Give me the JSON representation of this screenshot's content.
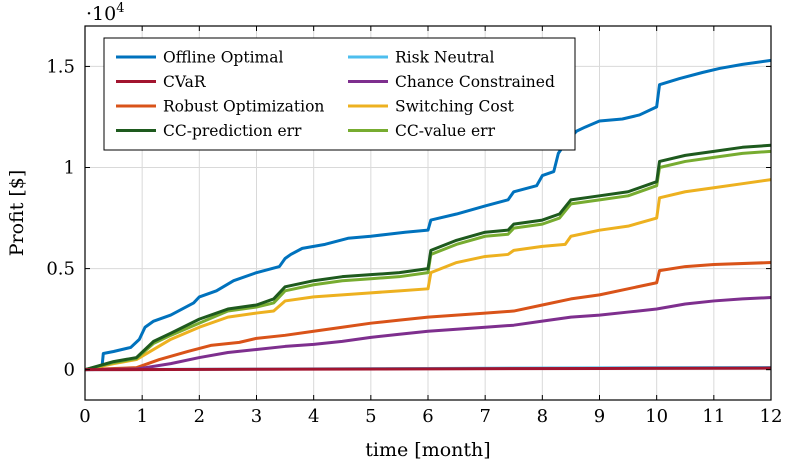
{
  "chart_data": {
    "type": "line",
    "xlabel": "time [month]",
    "ylabel": "Profit [$]",
    "y_multiplier": "·10",
    "y_multiplier_exponent": "4",
    "xlim": [
      0,
      12
    ],
    "ylim": [
      -0.15,
      1.7
    ],
    "x_ticks": [
      0,
      1,
      2,
      3,
      4,
      5,
      6,
      7,
      8,
      9,
      10,
      11,
      12
    ],
    "x_tick_labels": [
      "0",
      "1",
      "2",
      "3",
      "4",
      "5",
      "6",
      "7",
      "8",
      "9",
      "10",
      "11",
      "12"
    ],
    "y_ticks": [
      0,
      0.5,
      1,
      1.5
    ],
    "y_tick_labels": [
      "0",
      "0.5",
      "1",
      "1.5"
    ],
    "grid": true,
    "legend_position": "top-left",
    "series": [
      {
        "name": "Offline Optimal",
        "color": "#0072bd",
        "points": [
          [
            0,
            0
          ],
          [
            0.3,
            0.02
          ],
          [
            0.32,
            0.08
          ],
          [
            0.5,
            0.09
          ],
          [
            0.8,
            0.11
          ],
          [
            0.95,
            0.15
          ],
          [
            1.05,
            0.21
          ],
          [
            1.2,
            0.24
          ],
          [
            1.5,
            0.27
          ],
          [
            1.9,
            0.33
          ],
          [
            2.0,
            0.36
          ],
          [
            2.3,
            0.39
          ],
          [
            2.6,
            0.44
          ],
          [
            3.0,
            0.48
          ],
          [
            3.4,
            0.51
          ],
          [
            3.5,
            0.55
          ],
          [
            3.6,
            0.57
          ],
          [
            3.8,
            0.6
          ],
          [
            4.2,
            0.62
          ],
          [
            4.6,
            0.65
          ],
          [
            5.0,
            0.66
          ],
          [
            5.3,
            0.67
          ],
          [
            5.6,
            0.68
          ],
          [
            6.0,
            0.69
          ],
          [
            6.05,
            0.74
          ],
          [
            6.5,
            0.77
          ],
          [
            7.0,
            0.81
          ],
          [
            7.4,
            0.84
          ],
          [
            7.5,
            0.88
          ],
          [
            7.9,
            0.91
          ],
          [
            8.0,
            0.96
          ],
          [
            8.2,
            0.98
          ],
          [
            8.28,
            1.07
          ],
          [
            8.4,
            1.12
          ],
          [
            8.6,
            1.18
          ],
          [
            8.75,
            1.2
          ],
          [
            9.0,
            1.23
          ],
          [
            9.4,
            1.24
          ],
          [
            9.7,
            1.26
          ],
          [
            10.0,
            1.3
          ],
          [
            10.05,
            1.41
          ],
          [
            10.4,
            1.44
          ],
          [
            10.8,
            1.47
          ],
          [
            11.1,
            1.49
          ],
          [
            11.5,
            1.51
          ],
          [
            12,
            1.53
          ]
        ]
      },
      {
        "name": "Risk Neutral",
        "color": "#4dbeee",
        "points": [
          [
            0,
            0
          ],
          [
            3,
            0.003
          ],
          [
            6,
            0.006
          ],
          [
            9,
            0.009
          ],
          [
            12,
            0.011
          ]
        ]
      },
      {
        "name": "CVaR",
        "color": "#a2142f",
        "points": [
          [
            0,
            0
          ],
          [
            3,
            0.002
          ],
          [
            6,
            0.004
          ],
          [
            9,
            0.006
          ],
          [
            12,
            0.008
          ]
        ]
      },
      {
        "name": "Chance Constrained",
        "color": "#7e2f8e",
        "points": [
          [
            0,
            0
          ],
          [
            0.9,
            0.003
          ],
          [
            1.5,
            0.03
          ],
          [
            2.0,
            0.06
          ],
          [
            2.5,
            0.085
          ],
          [
            3.0,
            0.1
          ],
          [
            3.5,
            0.115
          ],
          [
            4.0,
            0.125
          ],
          [
            4.5,
            0.14
          ],
          [
            5.0,
            0.16
          ],
          [
            5.5,
            0.175
          ],
          [
            6.0,
            0.19
          ],
          [
            6.5,
            0.2
          ],
          [
            7.0,
            0.21
          ],
          [
            7.5,
            0.22
          ],
          [
            8.0,
            0.24
          ],
          [
            8.5,
            0.26
          ],
          [
            9.0,
            0.27
          ],
          [
            9.5,
            0.285
          ],
          [
            10.0,
            0.3
          ],
          [
            10.5,
            0.325
          ],
          [
            11.0,
            0.34
          ],
          [
            11.5,
            0.35
          ],
          [
            12,
            0.357
          ]
        ]
      },
      {
        "name": "Robust Optimization",
        "color": "#d95319",
        "points": [
          [
            0,
            0
          ],
          [
            0.9,
            0.01
          ],
          [
            1.3,
            0.05
          ],
          [
            1.8,
            0.09
          ],
          [
            2.2,
            0.12
          ],
          [
            2.7,
            0.135
          ],
          [
            3.0,
            0.155
          ],
          [
            3.5,
            0.17
          ],
          [
            4.0,
            0.19
          ],
          [
            4.5,
            0.21
          ],
          [
            5.0,
            0.23
          ],
          [
            5.5,
            0.245
          ],
          [
            6.0,
            0.26
          ],
          [
            6.5,
            0.27
          ],
          [
            7.0,
            0.28
          ],
          [
            7.5,
            0.29
          ],
          [
            8.0,
            0.32
          ],
          [
            8.5,
            0.35
          ],
          [
            9.0,
            0.37
          ],
          [
            9.5,
            0.4
          ],
          [
            10.0,
            0.43
          ],
          [
            10.05,
            0.49
          ],
          [
            10.5,
            0.51
          ],
          [
            11.0,
            0.52
          ],
          [
            12,
            0.53
          ]
        ]
      },
      {
        "name": "Switching Cost",
        "color": "#edb120",
        "points": [
          [
            0,
            0
          ],
          [
            0.5,
            0.03
          ],
          [
            0.9,
            0.05
          ],
          [
            1.2,
            0.1
          ],
          [
            1.5,
            0.15
          ],
          [
            2.0,
            0.21
          ],
          [
            2.5,
            0.26
          ],
          [
            3.0,
            0.28
          ],
          [
            3.3,
            0.29
          ],
          [
            3.5,
            0.34
          ],
          [
            4.0,
            0.36
          ],
          [
            4.5,
            0.37
          ],
          [
            5.0,
            0.38
          ],
          [
            5.5,
            0.39
          ],
          [
            6.0,
            0.4
          ],
          [
            6.05,
            0.48
          ],
          [
            6.5,
            0.53
          ],
          [
            7.0,
            0.56
          ],
          [
            7.4,
            0.57
          ],
          [
            7.5,
            0.59
          ],
          [
            8.0,
            0.61
          ],
          [
            8.4,
            0.62
          ],
          [
            8.5,
            0.66
          ],
          [
            9.0,
            0.69
          ],
          [
            9.5,
            0.71
          ],
          [
            10.0,
            0.75
          ],
          [
            10.05,
            0.85
          ],
          [
            10.5,
            0.88
          ],
          [
            11.0,
            0.9
          ],
          [
            11.5,
            0.92
          ],
          [
            12,
            0.94
          ]
        ]
      },
      {
        "name": "CC-prediction err",
        "color": "#1e5a1e",
        "points": [
          [
            0,
            0
          ],
          [
            0.5,
            0.04
          ],
          [
            0.9,
            0.06
          ],
          [
            1.2,
            0.14
          ],
          [
            1.5,
            0.18
          ],
          [
            2.0,
            0.25
          ],
          [
            2.5,
            0.3
          ],
          [
            3.0,
            0.32
          ],
          [
            3.3,
            0.35
          ],
          [
            3.5,
            0.41
          ],
          [
            4.0,
            0.44
          ],
          [
            4.5,
            0.46
          ],
          [
            5.0,
            0.47
          ],
          [
            5.5,
            0.48
          ],
          [
            6.0,
            0.5
          ],
          [
            6.05,
            0.59
          ],
          [
            6.5,
            0.64
          ],
          [
            7.0,
            0.68
          ],
          [
            7.4,
            0.69
          ],
          [
            7.5,
            0.72
          ],
          [
            8.0,
            0.74
          ],
          [
            8.3,
            0.77
          ],
          [
            8.5,
            0.84
          ],
          [
            9.0,
            0.86
          ],
          [
            9.5,
            0.88
          ],
          [
            10.0,
            0.93
          ],
          [
            10.05,
            1.03
          ],
          [
            10.5,
            1.06
          ],
          [
            11.0,
            1.08
          ],
          [
            11.5,
            1.1
          ],
          [
            12,
            1.11
          ]
        ]
      },
      {
        "name": "CC-value err",
        "color": "#77ac30",
        "points": [
          [
            0,
            0
          ],
          [
            0.5,
            0.035
          ],
          [
            0.9,
            0.055
          ],
          [
            1.2,
            0.13
          ],
          [
            1.5,
            0.17
          ],
          [
            2.0,
            0.23
          ],
          [
            2.5,
            0.29
          ],
          [
            3.0,
            0.31
          ],
          [
            3.3,
            0.33
          ],
          [
            3.5,
            0.39
          ],
          [
            4.0,
            0.42
          ],
          [
            4.5,
            0.44
          ],
          [
            5.0,
            0.45
          ],
          [
            5.5,
            0.46
          ],
          [
            6.0,
            0.48
          ],
          [
            6.05,
            0.57
          ],
          [
            6.5,
            0.62
          ],
          [
            7.0,
            0.66
          ],
          [
            7.4,
            0.67
          ],
          [
            7.5,
            0.7
          ],
          [
            8.0,
            0.72
          ],
          [
            8.3,
            0.75
          ],
          [
            8.5,
            0.82
          ],
          [
            9.0,
            0.84
          ],
          [
            9.5,
            0.86
          ],
          [
            10.0,
            0.91
          ],
          [
            10.05,
            1.0
          ],
          [
            10.5,
            1.03
          ],
          [
            11.0,
            1.05
          ],
          [
            11.5,
            1.07
          ],
          [
            12,
            1.08
          ]
        ]
      }
    ],
    "legend_order": [
      "Offline Optimal",
      "Risk Neutral",
      "CVaR",
      "Chance Constrained",
      "Robust Optimization",
      "Switching Cost",
      "CC-prediction err",
      "CC-value err"
    ]
  }
}
